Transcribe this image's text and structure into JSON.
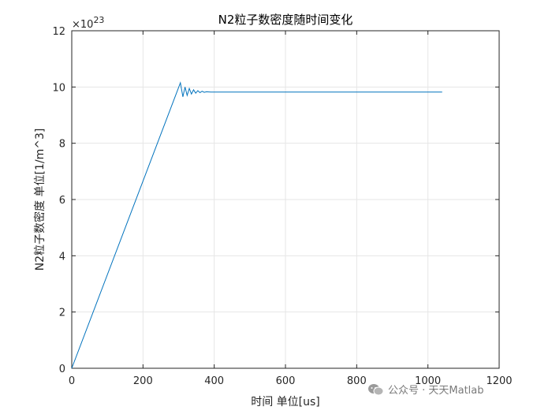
{
  "chart_data": {
    "type": "line",
    "title": "N2粒子数密度随时间变化",
    "xlabel": "时间 单位[us]",
    "ylabel": "N2粒子数密度 单位[1/m^3]",
    "y_exponent_base": "×10",
    "y_exponent_power": "23",
    "xlim": [
      0,
      1200
    ],
    "ylim": [
      0,
      12
    ],
    "xticks": [
      0,
      200,
      400,
      600,
      800,
      1000,
      1200
    ],
    "yticks": [
      0,
      2,
      4,
      6,
      8,
      10,
      12
    ],
    "grid": true,
    "line_color": "#0072BD",
    "series": [
      {
        "x": [
          0,
          305,
          312,
          318,
          324,
          330,
          336,
          342,
          348,
          354,
          360,
          366,
          372,
          378,
          390,
          400,
          500,
          700,
          900,
          1040
        ],
        "y": [
          0,
          10.15,
          9.65,
          10.0,
          9.7,
          9.95,
          9.75,
          9.9,
          9.78,
          9.87,
          9.8,
          9.85,
          9.81,
          9.83,
          9.82,
          9.82,
          9.82,
          9.82,
          9.82,
          9.82
        ]
      }
    ]
  },
  "watermark": {
    "text": "公众号 · 天天Matlab",
    "icon": "wechat-icon"
  }
}
